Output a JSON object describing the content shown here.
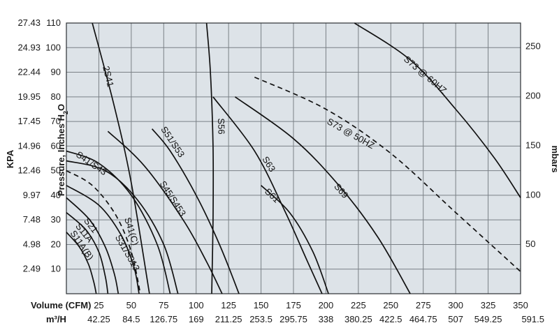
{
  "chart_data": {
    "type": "line",
    "title": "",
    "xlabel_rows": [
      "Volume (CFM)",
      "m³/H"
    ],
    "ylabel_left": "Pressure, Inches H2O",
    "ylabel_left_parts": [
      "Pressure, Inches H",
      "2",
      "O"
    ],
    "ylabel_far_left": "KPA",
    "ylabel_right": "mbars",
    "xlim": [
      0,
      350
    ],
    "ylim": [
      0,
      110
    ],
    "grid": true,
    "legend": "none",
    "x_ticks_cfm": [
      "25",
      "50",
      "75",
      "100",
      "125",
      "150",
      "175",
      "200",
      "225",
      "250",
      "275",
      "300",
      "325",
      "350"
    ],
    "x_ticks_m3h": [
      "42.25",
      "84.5",
      "126.75",
      "169",
      "211.25",
      "253.5",
      "295.75",
      "338",
      "380.25",
      "422.5",
      "464.75",
      "507",
      "549.25",
      "591.5"
    ],
    "y_ticks_inches": [
      "10",
      "20",
      "30",
      "40",
      "50",
      "60",
      "70",
      "80",
      "90",
      "100",
      "110"
    ],
    "y_ticks_kpa": [
      "2.49",
      "4.98",
      "7.48",
      "9.97",
      "12.46",
      "14.96",
      "17.45",
      "19.95",
      "22.44",
      "24.93",
      "27.43"
    ],
    "y_ticks_mbars": [
      "50",
      "100",
      "150",
      "200",
      "250"
    ],
    "colors": {
      "line": "#111111",
      "grid": "#7a8086",
      "background": "#dde3e8"
    },
    "series": [
      {
        "name": "S11A(B)",
        "dashed": false,
        "x": [
          0,
          10,
          17,
          21,
          23
        ],
        "y": [
          25,
          19,
          12,
          5,
          0
        ],
        "label_pos": [
          10,
          19
        ]
      },
      {
        "name": "S11A",
        "dashed": false,
        "x": [
          0,
          15,
          25,
          30,
          32
        ],
        "y": [
          33,
          26,
          17,
          7,
          0
        ],
        "label_pos": [
          12,
          24
        ]
      },
      {
        "name": "S21",
        "dashed": false,
        "x": [
          0,
          18,
          30,
          37,
          40
        ],
        "y": [
          39,
          30,
          19,
          8,
          0
        ],
        "label_pos": [
          17,
          27
        ]
      },
      {
        "name": "S31/S313",
        "dashed": false,
        "x": [
          0,
          25,
          42,
          52,
          56
        ],
        "y": [
          44,
          36,
          24,
          11,
          0
        ],
        "label_pos": [
          45,
          16
        ]
      },
      {
        "name": "S41(C)",
        "dashed": true,
        "x": [
          0,
          20,
          38,
          50,
          57
        ],
        "y": [
          50,
          44,
          32,
          17,
          0
        ],
        "label_pos": [
          48,
          25
        ]
      },
      {
        "name": "S41/S43",
        "dashed": false,
        "x": [
          0,
          25,
          50,
          70,
          80
        ],
        "y": [
          58,
          53,
          40,
          20,
          0
        ],
        "label_pos": [
          18,
          52
        ]
      },
      {
        "name": "",
        "dashed": false,
        "x": [
          0,
          30,
          55,
          75,
          86
        ],
        "y": [
          54,
          50,
          38,
          20,
          0
        ]
      },
      {
        "name": "2S41",
        "dashed": false,
        "x": [
          20,
          37,
          50,
          64
        ],
        "y": [
          110,
          76,
          45,
          0
        ],
        "label_pos": [
          30,
          88
        ]
      },
      {
        "name": "S45/S453",
        "dashed": false,
        "x": [
          32,
          60,
          90,
          108,
          120
        ],
        "y": [
          66,
          52,
          30,
          13,
          0
        ],
        "label_pos": [
          80,
          38
        ]
      },
      {
        "name": "S51/S53",
        "dashed": false,
        "x": [
          66,
          80,
          100,
          118,
          133
        ],
        "y": [
          67,
          58,
          40,
          20,
          0
        ],
        "label_pos": [
          80,
          61
        ]
      },
      {
        "name": "S56",
        "dashed": false,
        "x": [
          108,
          111,
          113,
          113,
          112
        ],
        "y": [
          110,
          90,
          60,
          30,
          0
        ],
        "label_pos": [
          117,
          68
        ]
      },
      {
        "name": "S63",
        "dashed": false,
        "x": [
          113,
          145,
          168,
          185,
          197
        ],
        "y": [
          80,
          58,
          34,
          14,
          0
        ],
        "label_pos": [
          154,
          52
        ]
      },
      {
        "name": "S61",
        "dashed": false,
        "x": [
          150,
          172,
          190,
          202
        ],
        "y": [
          44,
          33,
          17,
          0
        ],
        "label_pos": [
          157,
          39
        ]
      },
      {
        "name": "S69",
        "dashed": false,
        "x": [
          130,
          175,
          210,
          240,
          265
        ],
        "y": [
          80,
          63,
          44,
          23,
          0
        ],
        "label_pos": [
          210,
          41
        ]
      },
      {
        "name": "S73 @ 50HZ",
        "dashed": true,
        "x": [
          145,
          200,
          250,
          300,
          350
        ],
        "y": [
          88,
          75,
          57,
          33,
          9
        ],
        "label_pos": [
          218,
          64
        ]
      },
      {
        "name": "S73 @ 60HZ",
        "dashed": false,
        "x": [
          222,
          265,
          300,
          330,
          350
        ],
        "y": [
          110,
          95,
          75,
          55,
          39
        ],
        "label_pos": [
          275,
          88
        ]
      }
    ]
  }
}
